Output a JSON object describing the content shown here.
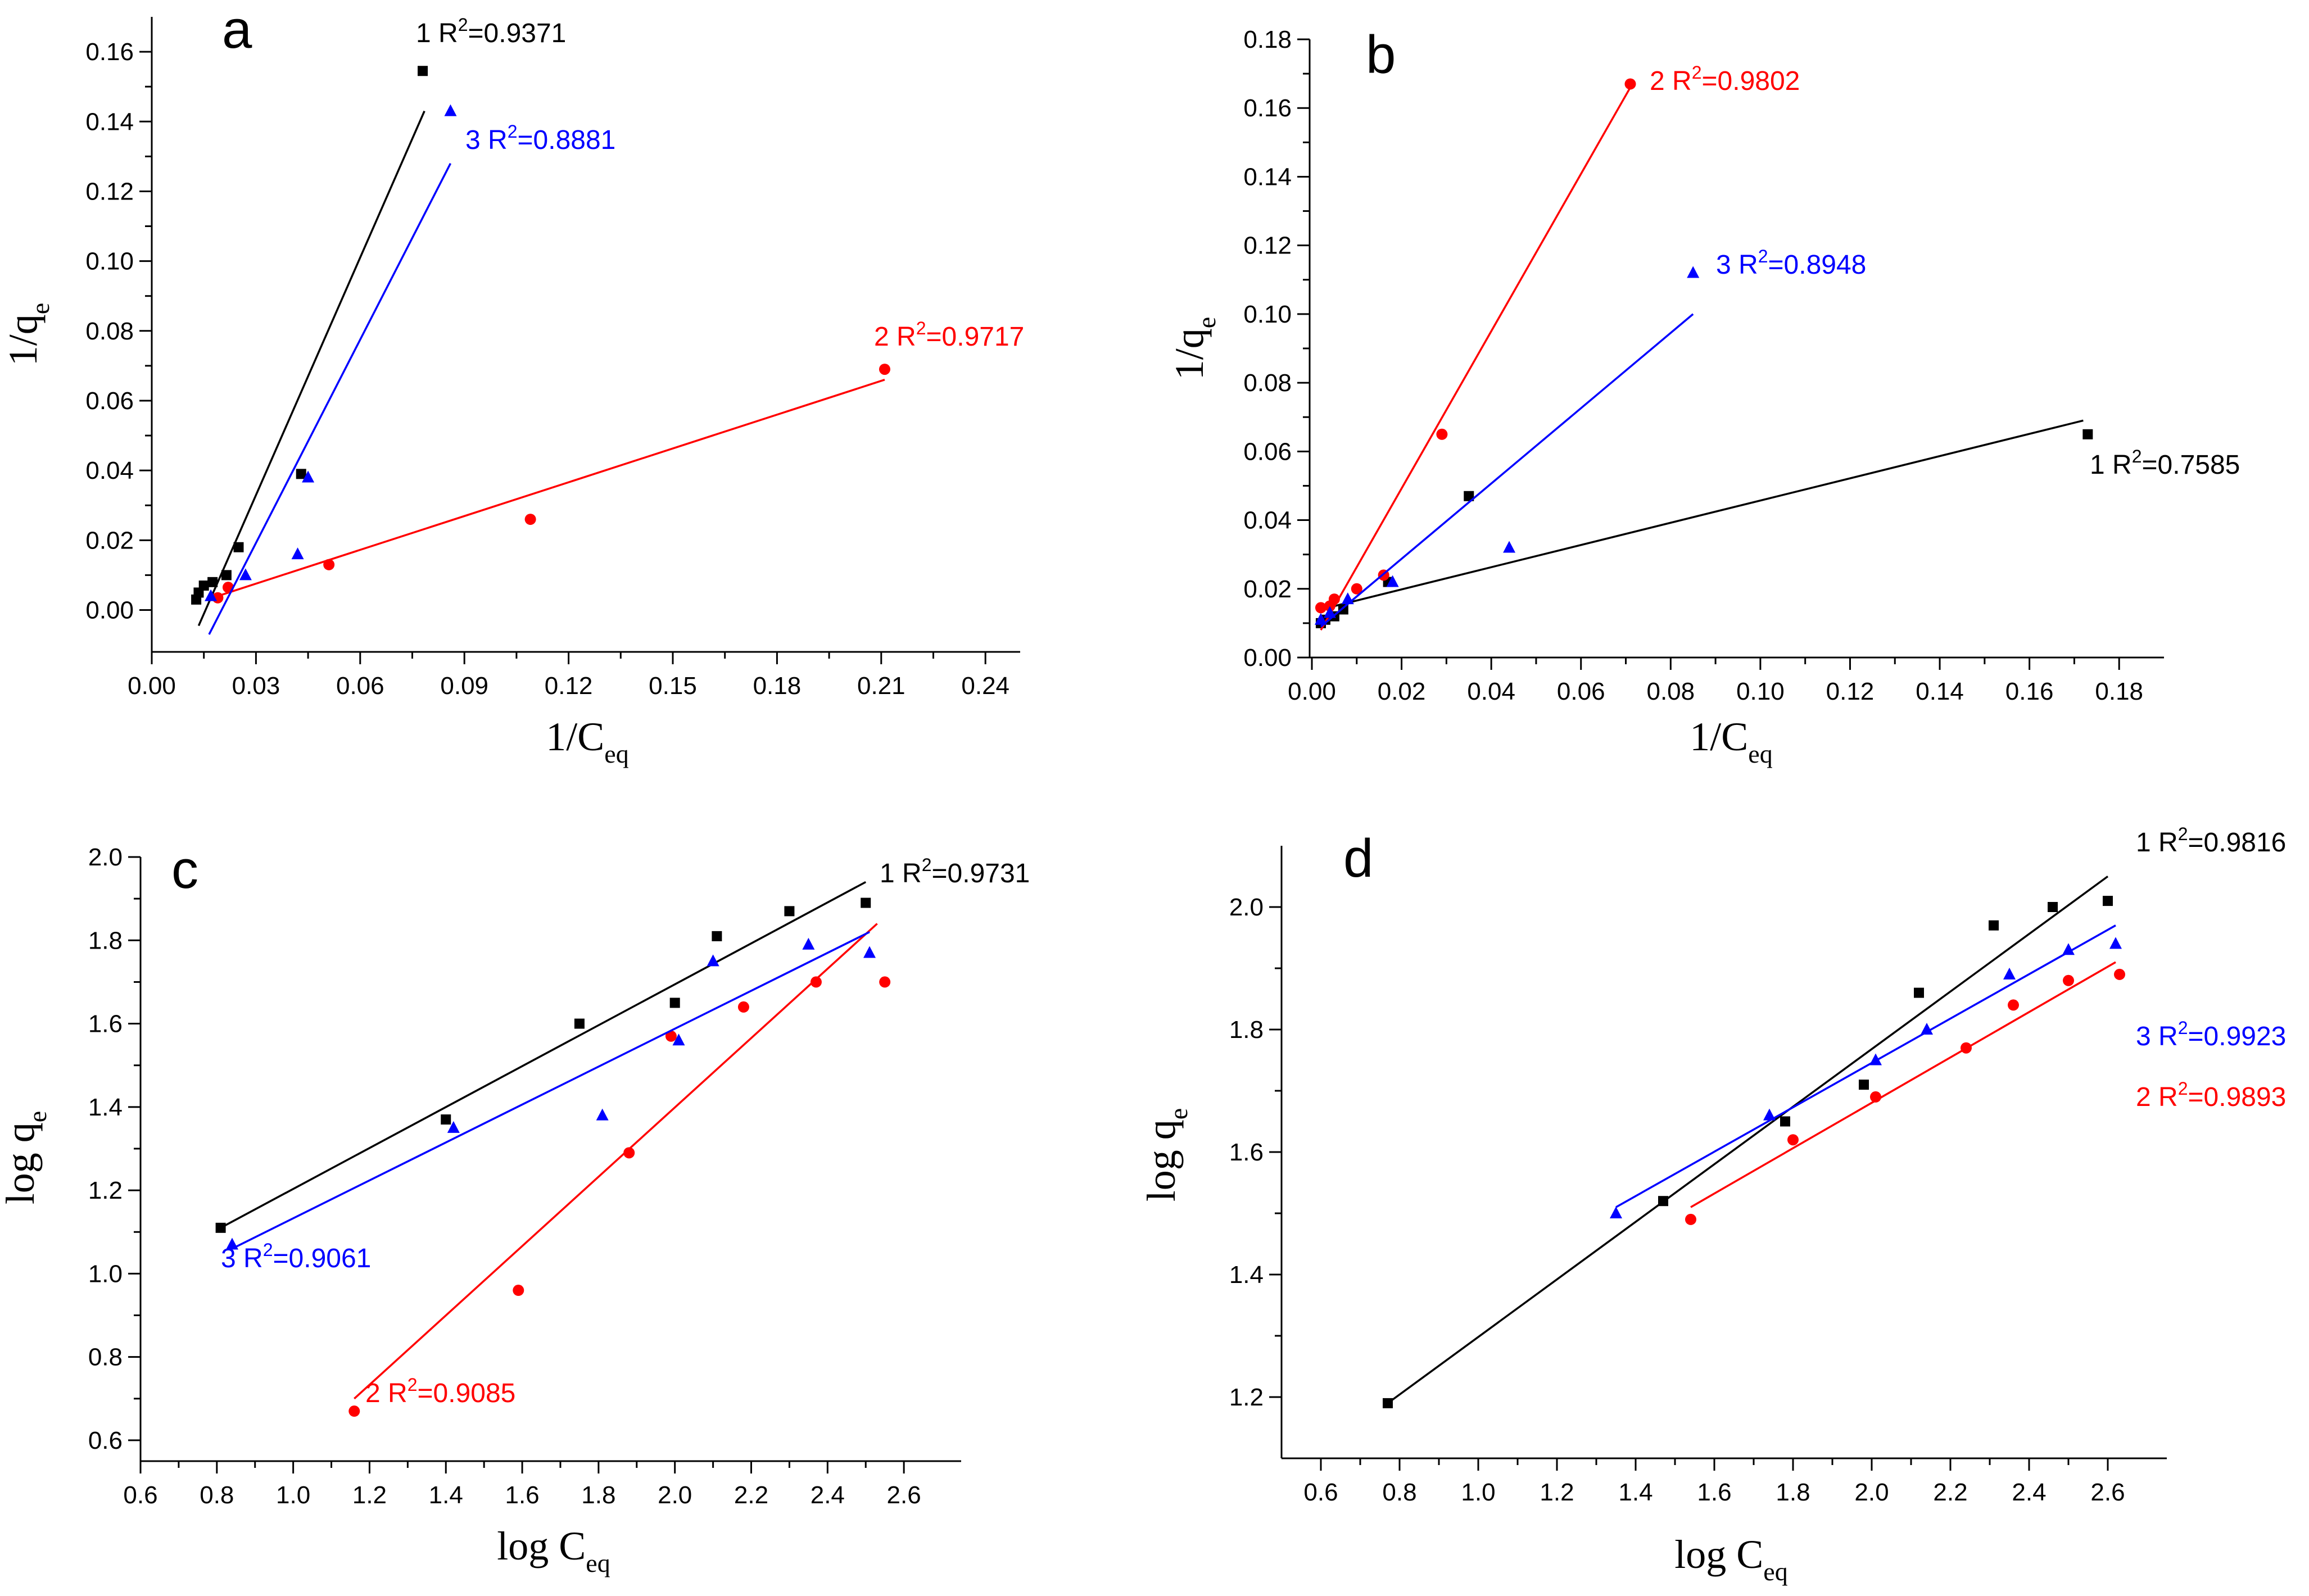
{
  "chart_data": [
    {
      "type": "scatter",
      "panel_label": "a",
      "xlabel": "1/C",
      "xlabel_sub": "eq",
      "ylabel": "1/q",
      "ylabel_sub": "e",
      "xlim": [
        0,
        0.25
      ],
      "ylim": [
        -0.012,
        0.17
      ],
      "xticks": [
        0.0,
        0.03,
        0.06,
        0.09,
        0.12,
        0.15,
        0.18,
        0.21,
        0.24
      ],
      "xtick_labels": [
        "0.00",
        "0.03",
        "0.06",
        "0.09",
        "0.12",
        "0.15",
        "0.18",
        "0.21",
        "0.24"
      ],
      "yticks": [
        0.0,
        0.02,
        0.04,
        0.06,
        0.08,
        0.1,
        0.12,
        0.14,
        0.16
      ],
      "ytick_labels": [
        "0.00",
        "0.02",
        "0.04",
        "0.06",
        "0.08",
        "0.10",
        "0.12",
        "0.14",
        "0.16"
      ],
      "grid": false,
      "series": [
        {
          "name": "1",
          "color": "#000000",
          "marker": "square",
          "r2_label": "R",
          "r2_value": "=0.9371",
          "x": [
            0.0128,
            0.0135,
            0.015,
            0.0175,
            0.0215,
            0.025,
            0.043,
            0.078
          ],
          "y": [
            0.003,
            0.005,
            0.007,
            0.008,
            0.01,
            0.018,
            0.039,
            0.1545
          ],
          "fit": [
            [
              0.0135,
              -0.0045
            ],
            [
              0.0785,
              0.143
            ]
          ]
        },
        {
          "name": "2",
          "color": "#ff0000",
          "marker": "circle",
          "r2_label": "R",
          "r2_value": "=0.9717",
          "x": [
            0.019,
            0.022,
            0.051,
            0.109,
            0.211
          ],
          "y": [
            0.0035,
            0.0065,
            0.013,
            0.026,
            0.069
          ],
          "fit": [
            [
              0.019,
              0.004
            ],
            [
              0.211,
              0.066
            ]
          ]
        },
        {
          "name": "3",
          "color": "#0000ff",
          "marker": "triangle",
          "r2_label": "R",
          "r2_value": "=0.8881",
          "x": [
            0.017,
            0.027,
            0.042,
            0.045,
            0.086
          ],
          "y": [
            0.004,
            0.01,
            0.016,
            0.038,
            0.143
          ],
          "fit": [
            [
              0.0165,
              -0.007
            ],
            [
              0.086,
              0.128
            ]
          ]
        }
      ]
    },
    {
      "type": "scatter",
      "panel_label": "b",
      "xlabel": "1/C",
      "xlabel_sub": "eq",
      "ylabel": "1/q",
      "ylabel_sub": "e",
      "xlim": [
        -0.0005,
        0.19
      ],
      "ylim": [
        0,
        0.18
      ],
      "xticks": [
        0.0,
        0.02,
        0.04,
        0.06,
        0.08,
        0.1,
        0.12,
        0.14,
        0.16,
        0.18
      ],
      "xtick_labels": [
        "0.00",
        "0.02",
        "0.04",
        "0.06",
        "0.08",
        "0.10",
        "0.12",
        "0.14",
        "0.16",
        "0.18"
      ],
      "yticks": [
        0.0,
        0.02,
        0.04,
        0.06,
        0.08,
        0.1,
        0.12,
        0.14,
        0.16,
        0.18
      ],
      "ytick_labels": [
        "0.00",
        "0.02",
        "0.04",
        "0.06",
        "0.08",
        "0.10",
        "0.12",
        "0.14",
        "0.16",
        "0.18"
      ],
      "grid": false,
      "series": [
        {
          "name": "1",
          "color": "#000000",
          "marker": "square",
          "r2_label": "R",
          "r2_value": "=0.7585",
          "x": [
            0.002,
            0.003,
            0.005,
            0.007,
            0.017,
            0.035,
            0.173
          ],
          "y": [
            0.01,
            0.011,
            0.012,
            0.014,
            0.022,
            0.047,
            0.065
          ],
          "fit": [
            [
              0.002,
              0.014
            ],
            [
              0.172,
              0.069
            ]
          ]
        },
        {
          "name": "2",
          "color": "#ff0000",
          "marker": "circle",
          "r2_label": "R",
          "r2_value": "=0.9802",
          "x": [
            0.002,
            0.004,
            0.005,
            0.01,
            0.016,
            0.029,
            0.071
          ],
          "y": [
            0.0145,
            0.015,
            0.017,
            0.02,
            0.024,
            0.065,
            0.167
          ],
          "fit": [
            [
              0.002,
              0.008
            ],
            [
              0.071,
              0.166
            ]
          ]
        },
        {
          "name": "3",
          "color": "#0000ff",
          "marker": "triangle",
          "r2_label": "R",
          "r2_value": "=0.8948",
          "x": [
            0.002,
            0.004,
            0.008,
            0.018,
            0.044,
            0.085
          ],
          "y": [
            0.011,
            0.013,
            0.017,
            0.022,
            0.032,
            0.112
          ],
          "fit": [
            [
              0.002,
              0.009
            ],
            [
              0.085,
              0.1
            ]
          ]
        }
      ]
    },
    {
      "type": "scatter",
      "panel_label": "c",
      "xlabel": "log C",
      "xlabel_sub": "eq",
      "ylabel": "log q",
      "ylabel_sub": "e",
      "xlim": [
        0.6,
        2.75
      ],
      "ylim": [
        0.55,
        2.0
      ],
      "xticks": [
        0.6,
        0.8,
        1.0,
        1.2,
        1.4,
        1.6,
        1.8,
        2.0,
        2.2,
        2.4,
        2.6
      ],
      "xtick_labels": [
        "0.6",
        "0.8",
        "1.0",
        "1.2",
        "1.4",
        "1.6",
        "1.8",
        "2.0",
        "2.2",
        "2.4",
        "2.6"
      ],
      "yticks": [
        0.6,
        0.8,
        1.0,
        1.2,
        1.4,
        1.6,
        1.8,
        2.0
      ],
      "ytick_labels": [
        "0.6",
        "0.8",
        "1.0",
        "1.2",
        "1.4",
        "1.6",
        "1.8",
        "2.0"
      ],
      "grid": false,
      "series": [
        {
          "name": "1",
          "color": "#000000",
          "marker": "square",
          "r2_label": "R",
          "r2_value": "=0.9731",
          "x": [
            0.81,
            1.4,
            1.75,
            2.0,
            2.11,
            2.3,
            2.5
          ],
          "y": [
            1.11,
            1.37,
            1.6,
            1.65,
            1.81,
            1.87,
            1.89
          ],
          "fit": [
            [
              0.81,
              1.11
            ],
            [
              2.5,
              1.94
            ]
          ]
        },
        {
          "name": "2",
          "color": "#ff0000",
          "marker": "circle",
          "r2_label": "R",
          "r2_value": "=0.9085",
          "x": [
            1.16,
            1.59,
            1.88,
            1.99,
            2.18,
            2.37,
            2.55
          ],
          "y": [
            0.67,
            0.96,
            1.29,
            1.57,
            1.64,
            1.7,
            1.7
          ],
          "fit": [
            [
              1.16,
              0.7
            ],
            [
              2.53,
              1.84
            ]
          ]
        },
        {
          "name": "3",
          "color": "#0000ff",
          "marker": "triangle",
          "r2_label": "R",
          "r2_value": "=0.9061",
          "x": [
            0.84,
            1.42,
            1.81,
            2.01,
            2.1,
            2.35,
            2.51
          ],
          "y": [
            1.07,
            1.35,
            1.38,
            1.56,
            1.75,
            1.79,
            1.77
          ],
          "fit": [
            [
              0.84,
              1.06
            ],
            [
              2.51,
              1.82
            ]
          ]
        }
      ]
    },
    {
      "type": "scatter",
      "panel_label": "d",
      "xlabel": "log C",
      "xlabel_sub": "eq",
      "ylabel": "log q",
      "ylabel_sub": "e",
      "xlim": [
        0.5,
        2.75
      ],
      "ylim": [
        1.1,
        2.1
      ],
      "xticks": [
        0.6,
        0.8,
        1.0,
        1.2,
        1.4,
        1.6,
        1.8,
        2.0,
        2.2,
        2.4,
        2.6
      ],
      "xtick_labels": [
        "0.6",
        "0.8",
        "1.0",
        "1.2",
        "1.4",
        "1.6",
        "1.8",
        "2.0",
        "2.2",
        "2.4",
        "2.6"
      ],
      "yticks": [
        1.2,
        1.4,
        1.6,
        1.8,
        2.0
      ],
      "ytick_labels": [
        "1.2",
        "1.4",
        "1.6",
        "1.8",
        "2.0"
      ],
      "grid": false,
      "series": [
        {
          "name": "1",
          "color": "#000000",
          "marker": "square",
          "r2_label": "R",
          "r2_value": "=0.9816",
          "x": [
            0.77,
            1.47,
            1.78,
            1.98,
            2.12,
            2.31,
            2.46,
            2.6
          ],
          "y": [
            1.19,
            1.52,
            1.65,
            1.71,
            1.86,
            1.97,
            2.0,
            2.01
          ],
          "fit": [
            [
              0.77,
              1.19
            ],
            [
              2.6,
              2.05
            ]
          ]
        },
        {
          "name": "2",
          "color": "#ff0000",
          "marker": "circle",
          "r2_label": "R",
          "r2_value": "=0.9893",
          "x": [
            1.54,
            1.8,
            2.01,
            2.24,
            2.36,
            2.5,
            2.63
          ],
          "y": [
            1.49,
            1.62,
            1.69,
            1.77,
            1.84,
            1.88,
            1.89
          ],
          "fit": [
            [
              1.54,
              1.51
            ],
            [
              2.62,
              1.91
            ]
          ]
        },
        {
          "name": "3",
          "color": "#0000ff",
          "marker": "triangle",
          "r2_label": "R",
          "r2_value": "=0.9923",
          "x": [
            1.35,
            1.74,
            2.01,
            2.14,
            2.35,
            2.5,
            2.62
          ],
          "y": [
            1.5,
            1.66,
            1.75,
            1.8,
            1.89,
            1.93,
            1.94
          ],
          "fit": [
            [
              1.35,
              1.51
            ],
            [
              2.62,
              1.97
            ]
          ]
        }
      ]
    }
  ]
}
